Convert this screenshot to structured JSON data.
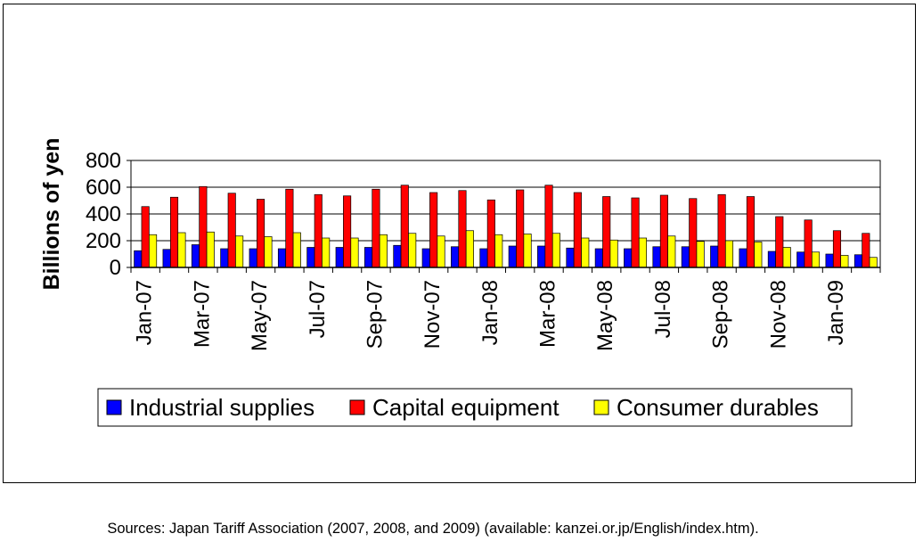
{
  "chart_data": {
    "type": "bar",
    "title": "",
    "xlabel": "",
    "ylabel": "Billions of yen",
    "ylim": [
      0,
      800
    ],
    "yticks": [
      "0",
      "200",
      "400",
      "600",
      "800"
    ],
    "gridlines": true,
    "legend_position": "bottom",
    "categories": [
      "Jan-07",
      "Feb-07",
      "Mar-07",
      "Apr-07",
      "May-07",
      "Jun-07",
      "Jul-07",
      "Aug-07",
      "Sep-07",
      "Oct-07",
      "Nov-07",
      "Dec-07",
      "Jan-08",
      "Feb-08",
      "Mar-08",
      "Apr-08",
      "May-08",
      "Jun-08",
      "Jul-08",
      "Aug-08",
      "Sep-08",
      "Oct-08",
      "Nov-08",
      "Dec-08",
      "Jan-09",
      "Feb-09"
    ],
    "x_tick_labels": [
      "Jan-07",
      "Mar-07",
      "May-07",
      "Jul-07",
      "Sep-07",
      "Nov-07",
      "Jan-08",
      "Mar-08",
      "May-08",
      "Jul-08",
      "Sep-08",
      "Nov-08",
      "Jan-09"
    ],
    "series": [
      {
        "name": "Industrial supplies",
        "color": "#0000ff",
        "values": [
          125,
          135,
          170,
          140,
          140,
          140,
          150,
          150,
          150,
          165,
          140,
          155,
          140,
          160,
          160,
          145,
          140,
          140,
          155,
          155,
          160,
          140,
          120,
          115,
          100,
          95
        ]
      },
      {
        "name": "Capital equipment",
        "color": "#ff0000",
        "values": [
          455,
          525,
          605,
          555,
          510,
          585,
          545,
          535,
          585,
          615,
          560,
          575,
          505,
          580,
          615,
          560,
          530,
          520,
          540,
          515,
          545,
          530,
          380,
          355,
          275,
          255
        ]
      },
      {
        "name": "Consumer durables",
        "color": "#ffff00",
        "values": [
          245,
          260,
          265,
          235,
          230,
          260,
          220,
          220,
          245,
          255,
          235,
          275,
          245,
          250,
          255,
          220,
          205,
          220,
          235,
          195,
          200,
          190,
          150,
          115,
          90,
          75
        ]
      }
    ]
  },
  "footnote": "Sources: Japan Tariff Association (2007, 2008, and 2009) (available: kanzei.or.jp/English/index.htm)."
}
